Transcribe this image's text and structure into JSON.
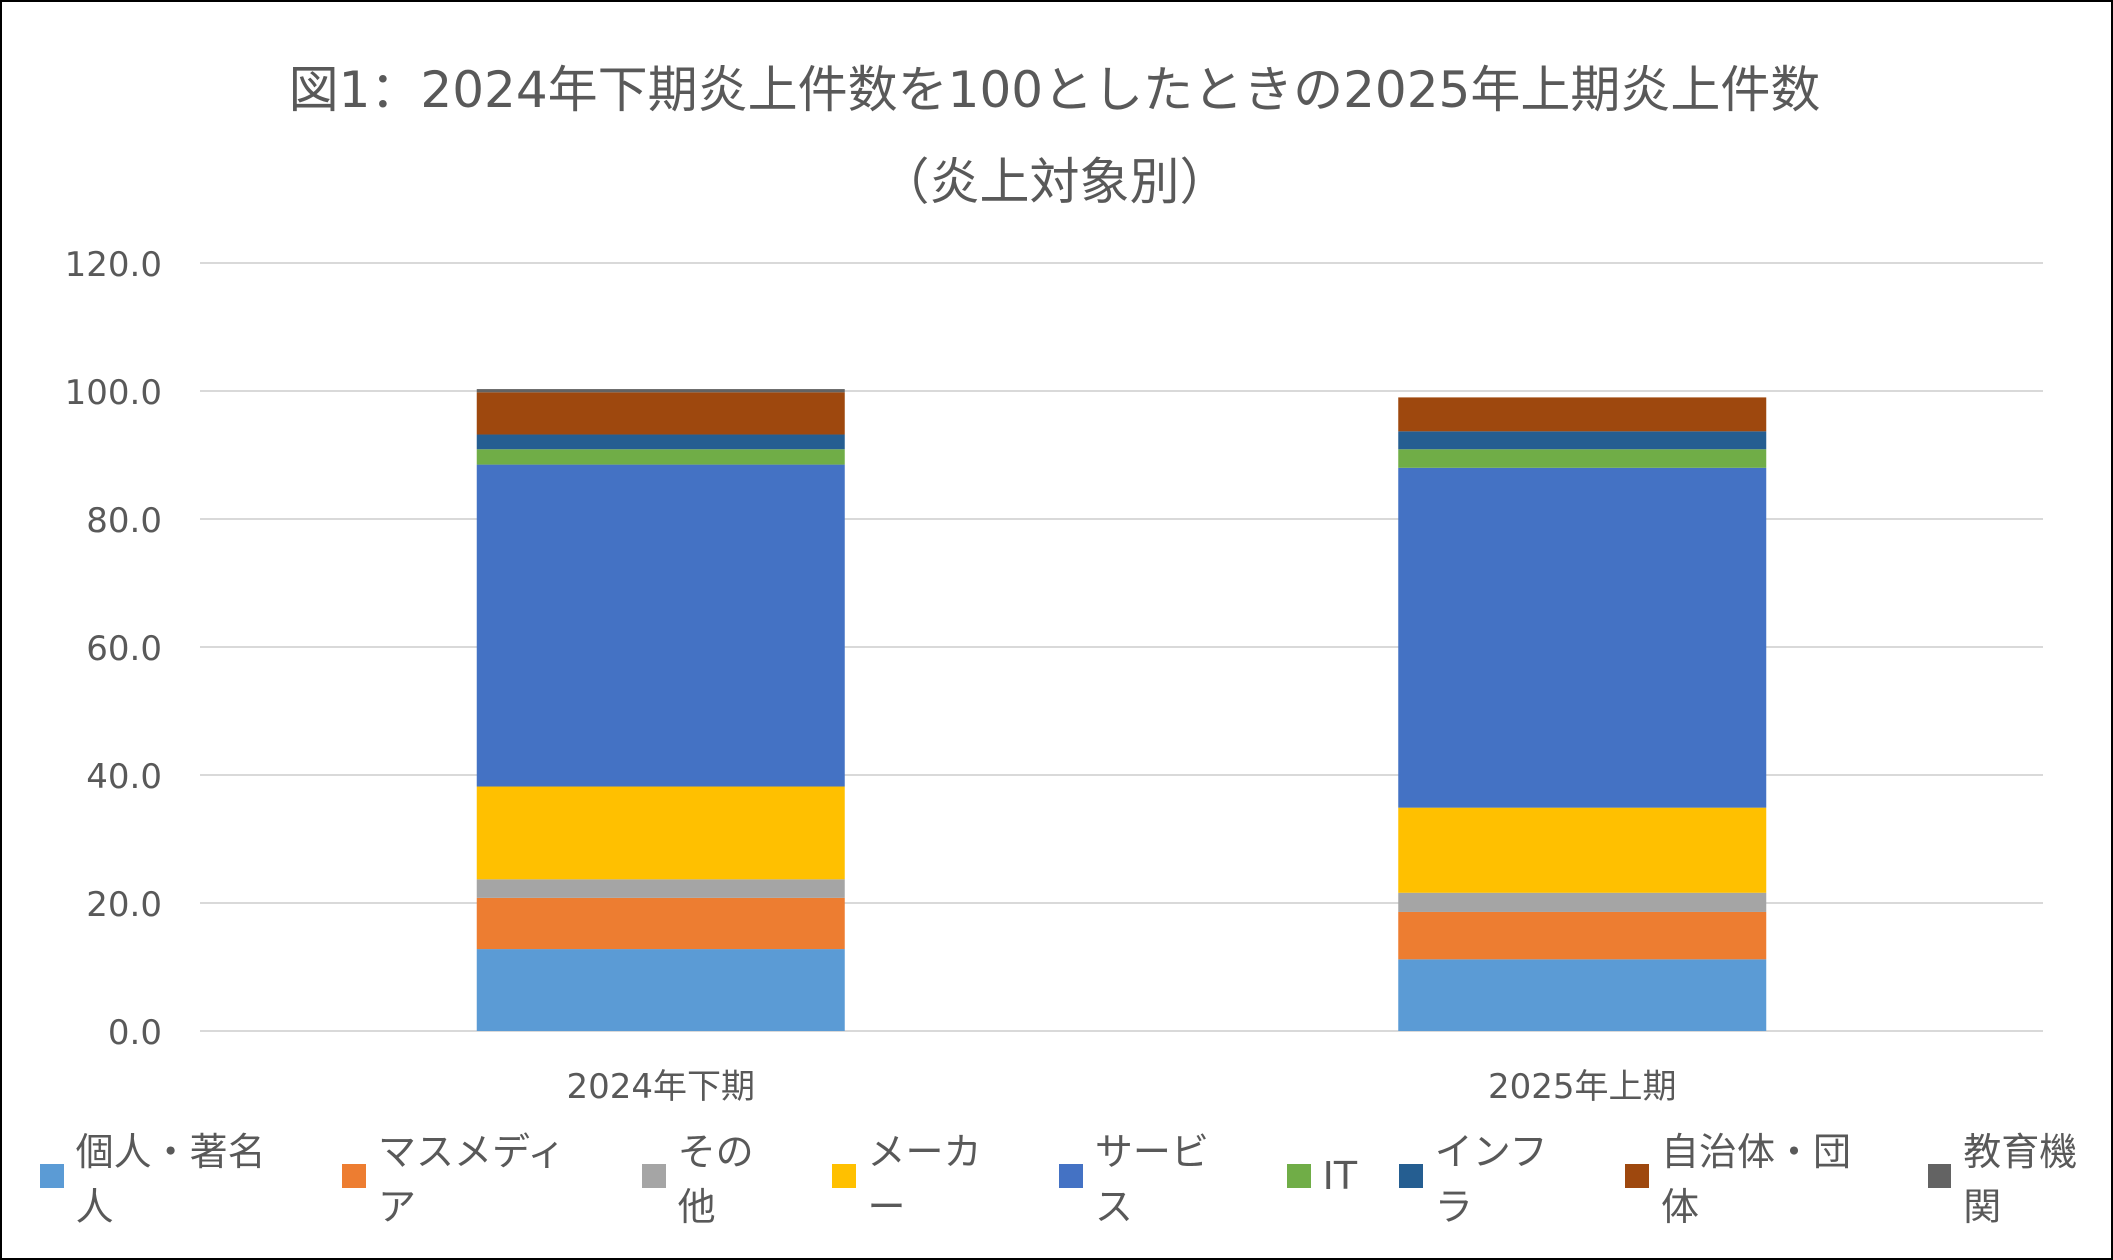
{
  "chart_data": {
    "type": "bar",
    "stacked": true,
    "title": "図1：2024年下期炎上件数を100としたときの2025年上期炎上件数",
    "subtitle": "（炎上対象別）",
    "categories": [
      "2024年下期",
      "2025年上期"
    ],
    "ylim": [
      0,
      120
    ],
    "yticks": [
      "0.0",
      "20.0",
      "40.0",
      "60.0",
      "80.0",
      "100.0",
      "120.0"
    ],
    "grid": true,
    "legend_position": "bottom",
    "series": [
      {
        "name": "個人・著名人",
        "color": "#5B9BD5",
        "values": [
          12.8,
          11.2
        ]
      },
      {
        "name": "マスメディア",
        "color": "#ED7D31",
        "values": [
          8.0,
          7.4
        ]
      },
      {
        "name": "その他",
        "color": "#A5A5A5",
        "values": [
          2.9,
          3.0
        ]
      },
      {
        "name": "メーカー",
        "color": "#FFC000",
        "values": [
          14.5,
          13.3
        ]
      },
      {
        "name": "サービス",
        "color": "#4472C4",
        "values": [
          50.3,
          53.1
        ]
      },
      {
        "name": "IT",
        "color": "#70AD47",
        "values": [
          2.4,
          2.9
        ]
      },
      {
        "name": "インフラ",
        "color": "#255E91",
        "values": [
          2.3,
          2.8
        ]
      },
      {
        "name": "自治体・団体",
        "color": "#9E480E",
        "values": [
          6.6,
          5.3
        ]
      },
      {
        "name": "教育機関",
        "color": "#636363",
        "values": [
          0.5,
          0.0
        ]
      }
    ]
  }
}
